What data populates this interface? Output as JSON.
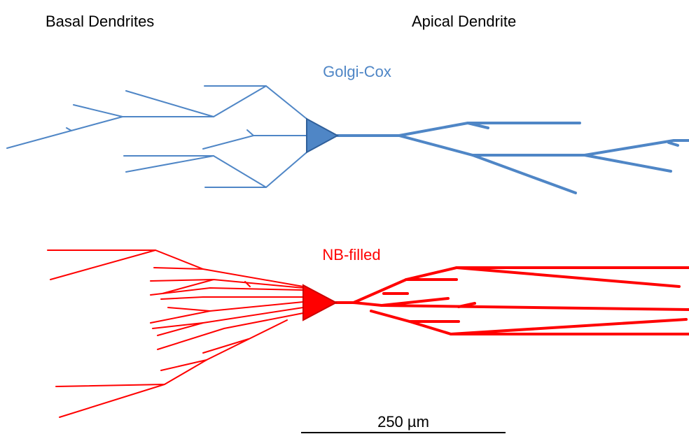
{
  "header": {
    "left": "Basal Dendrites",
    "right": "Apical Dendrite"
  },
  "neurons": [
    {
      "label": "Golgi-Cox"
    },
    {
      "label": "NB-filled"
    }
  ],
  "scale_bar": {
    "label": "250 µm"
  }
}
